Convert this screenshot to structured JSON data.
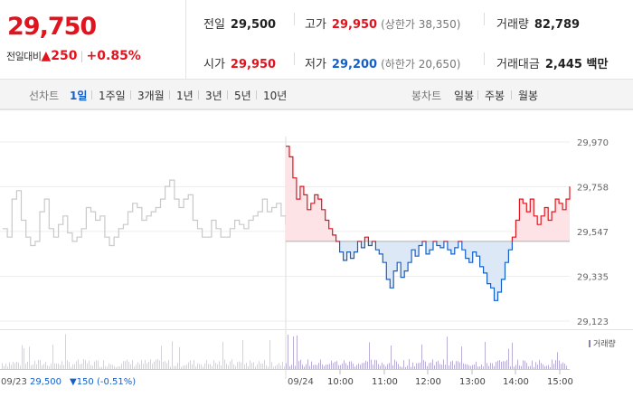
{
  "summary": {
    "price": "29,750",
    "change_label": "전일대비",
    "change_value": "▲250",
    "change_pct": "+0.85%",
    "prev_close_label": "전일",
    "prev_close": "29,500",
    "high_label": "고가",
    "high": "29,950",
    "upper_limit": "(상한가 38,350)",
    "volume_label": "거래량",
    "volume": "82,789",
    "open_label": "시가",
    "open": "29,950",
    "low_label": "저가",
    "low": "29,200",
    "lower_limit": "(하한가 20,650)",
    "amount_label": "거래대금",
    "amount": "2,445 백만"
  },
  "tabs": {
    "line_label": "선차트",
    "line_periods": [
      "1일",
      "1주일",
      "3개월",
      "1년",
      "3년",
      "5년",
      "10년"
    ],
    "active_period": "1일",
    "candle_label": "봉차트",
    "candle_periods": [
      "일봉",
      "주봉",
      "월봉"
    ]
  },
  "colors": {
    "up": "#e0141e",
    "down": "#1560c8",
    "prev_day": "#c9c9cc"
  },
  "chart_data": {
    "type": "line",
    "y_ticks": [
      "29,970",
      "29,758",
      "29,547",
      "29,335",
      "29,123"
    ],
    "y_tick_values": [
      29970,
      29758,
      29547,
      29335,
      29123
    ],
    "ylim": [
      29123,
      29970
    ],
    "base_price": 29500,
    "prev_day": {
      "date": "09/23",
      "close": "29,500",
      "change": "▼150 (-0.51%)",
      "values": [
        29560,
        29520,
        29700,
        29740,
        29600,
        29520,
        29480,
        29500,
        29640,
        29700,
        29560,
        29520,
        29580,
        29620,
        29540,
        29500,
        29520,
        29560,
        29660,
        29640,
        29600,
        29620,
        29520,
        29480,
        29520,
        29560,
        29580,
        29640,
        29680,
        29660,
        29600,
        29620,
        29640,
        29660,
        29700,
        29760,
        29790,
        29700,
        29660,
        29700,
        29720,
        29600,
        29560,
        29520,
        29520,
        29600,
        29560,
        29520,
        29520,
        29560,
        29600,
        29580,
        29560,
        29600,
        29620,
        29640,
        29700,
        29640,
        29660,
        29680,
        29620,
        29580
      ]
    },
    "today": {
      "date": "09/24",
      "time_ticks": [
        "10:00",
        "11:00",
        "12:00",
        "13:00",
        "14:00",
        "15:00"
      ],
      "values": [
        29950,
        29900,
        29800,
        29700,
        29760,
        29720,
        29650,
        29680,
        29720,
        29700,
        29650,
        29600,
        29560,
        29530,
        29500,
        29450,
        29410,
        29450,
        29420,
        29450,
        29500,
        29470,
        29520,
        29480,
        29500,
        29460,
        29440,
        29400,
        29320,
        29280,
        29360,
        29400,
        29330,
        29360,
        29400,
        29460,
        29430,
        29480,
        29500,
        29440,
        29460,
        29500,
        29480,
        29470,
        29500,
        29460,
        29440,
        29470,
        29500,
        29460,
        29420,
        29400,
        29450,
        29430,
        29380,
        29350,
        29300,
        29280,
        29220,
        29260,
        29320,
        29400,
        29460,
        29520,
        29600,
        29700,
        29680,
        29640,
        29700,
        29620,
        29580,
        29620,
        29660,
        29600,
        29640,
        29700,
        29680,
        29650,
        29700,
        29760
      ]
    },
    "volume_label": "거래량"
  }
}
